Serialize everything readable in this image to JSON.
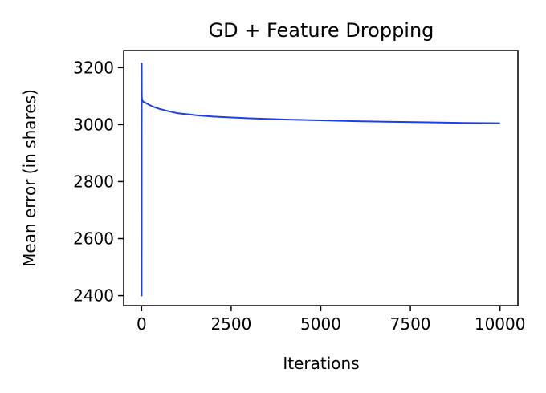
{
  "chart_data": {
    "type": "line",
    "title": "GD + Feature Dropping",
    "xlabel": "Iterations",
    "ylabel": "Mean error (in shares)",
    "xlim": [
      -500,
      10500
    ],
    "ylim": [
      2365,
      3260
    ],
    "x_ticks": [
      0,
      2500,
      5000,
      7500,
      10000
    ],
    "y_ticks": [
      2400,
      2600,
      2800,
      3000,
      3200
    ],
    "grid": false,
    "series": [
      {
        "name": "mean error",
        "color": "#1f3fe0",
        "x": [
          0,
          2,
          4,
          6,
          10,
          20,
          50,
          100,
          200,
          300,
          500,
          750,
          1000,
          1500,
          2000,
          2500,
          3000,
          4000,
          5000,
          6000,
          7000,
          8000,
          9000,
          10000
        ],
        "y": [
          3215,
          2400,
          3215,
          3110,
          3090,
          3085,
          3080,
          3077,
          3070,
          3064,
          3055,
          3047,
          3040,
          3033,
          3028,
          3025,
          3022,
          3018,
          3015,
          3012,
          3010,
          3008,
          3006,
          3005
        ]
      }
    ]
  }
}
